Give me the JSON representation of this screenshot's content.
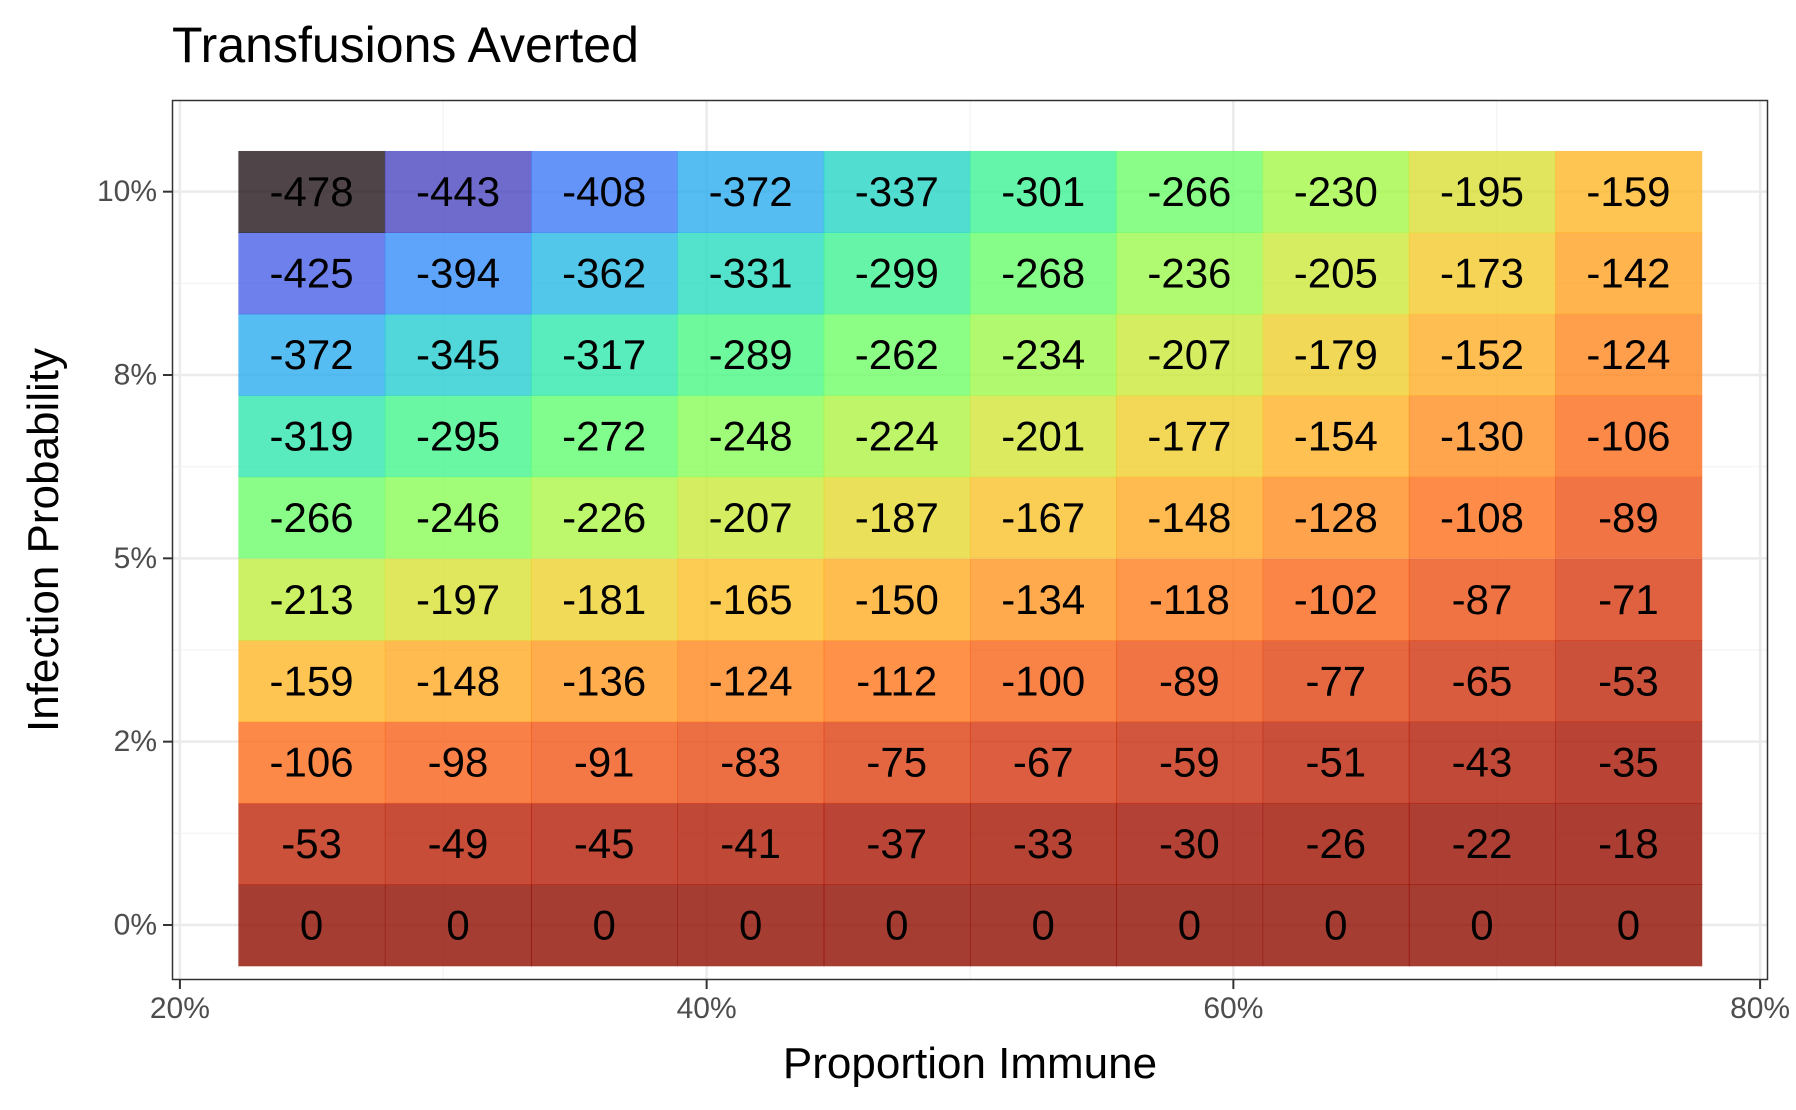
{
  "chart_data": {
    "type": "heatmap",
    "title": "Transfusions Averted",
    "xlabel": "Proportion Immune",
    "ylabel": "Infection Probability",
    "xlim": [
      0.197,
      0.803
    ],
    "ylim": [
      -0.0075,
      0.1125
    ],
    "x_ticks": [
      {
        "value": 0.2,
        "label": "20%"
      },
      {
        "value": 0.4,
        "label": "40%"
      },
      {
        "value": 0.6,
        "label": "60%"
      },
      {
        "value": 0.8,
        "label": "80%"
      }
    ],
    "y_ticks": [
      {
        "value": 0.0,
        "label": "0%"
      },
      {
        "value": 0.025,
        "label": "2%"
      },
      {
        "value": 0.05,
        "label": "5%"
      },
      {
        "value": 0.075,
        "label": "8%"
      },
      {
        "value": 0.1,
        "label": "10%"
      }
    ],
    "x": [
      0.25,
      0.3056,
      0.3611,
      0.4167,
      0.4722,
      0.5278,
      0.5833,
      0.6389,
      0.6944,
      0.75
    ],
    "y": [
      0.0,
      0.0111,
      0.0222,
      0.0333,
      0.0444,
      0.0556,
      0.0667,
      0.0778,
      0.0889,
      0.1
    ],
    "values": [
      [
        0,
        0,
        0,
        0,
        0,
        0,
        0,
        0,
        0,
        0
      ],
      [
        -53,
        -49,
        -45,
        -41,
        -37,
        -33,
        -30,
        -26,
        -22,
        -18
      ],
      [
        -106,
        -98,
        -91,
        -83,
        -75,
        -67,
        -59,
        -51,
        -43,
        -35
      ],
      [
        -159,
        -148,
        -136,
        -124,
        -112,
        -100,
        -89,
        -77,
        -65,
        -53
      ],
      [
        -213,
        -197,
        -181,
        -165,
        -150,
        -134,
        -118,
        -102,
        -87,
        -71
      ],
      [
        -266,
        -246,
        -226,
        -207,
        -187,
        -167,
        -148,
        -128,
        -108,
        -89
      ],
      [
        -319,
        -295,
        -272,
        -248,
        -224,
        -201,
        -177,
        -154,
        -130,
        -106
      ],
      [
        -372,
        -345,
        -317,
        -289,
        -262,
        -234,
        -207,
        -179,
        -152,
        -124
      ],
      [
        -425,
        -394,
        -362,
        -331,
        -299,
        -268,
        -236,
        -205,
        -173,
        -142
      ],
      [
        -478,
        -443,
        -408,
        -372,
        -337,
        -301,
        -266,
        -230,
        -195,
        -159
      ]
    ],
    "value_range": [
      -478,
      0
    ],
    "colorscale": "turbo",
    "grid": true,
    "legend": "none",
    "colors": {
      "panel_border": "#333333",
      "grid_major": "#ebebeb",
      "grid_minor": "#f5f5f5",
      "tick_text": "#4d4d4d",
      "axis_title_text": "#000000"
    }
  }
}
